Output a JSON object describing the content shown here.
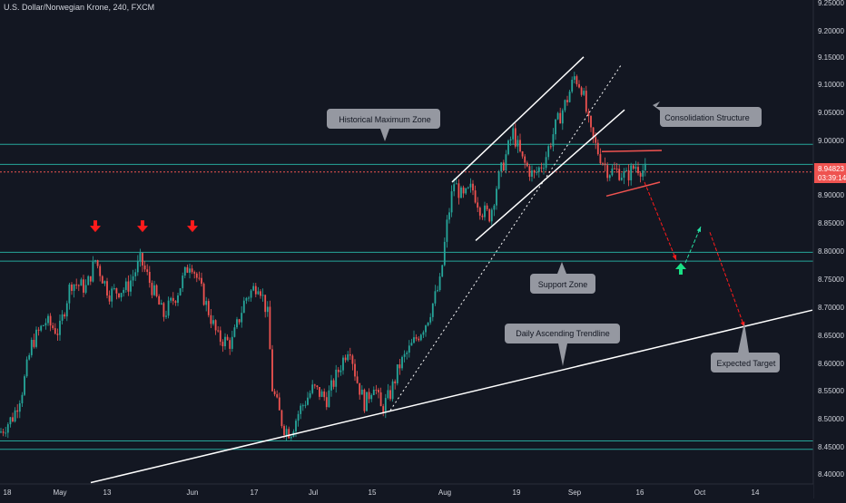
{
  "header": {
    "title": "U.S. Dollar/Norwegian Krone, 240, FXCM"
  },
  "colors": {
    "background": "#131722",
    "bull": "#26a69a",
    "bear": "#ef5350",
    "zone_line": "#26a69a",
    "price_line": "#ef5350",
    "annotation_box": "#9598a1",
    "annotation_text": "#131722",
    "axis_text": "#d1d4dc",
    "price_badge": "#ef5350"
  },
  "price_axis": {
    "ticks": [
      "9.25000",
      "9.20000",
      "9.15000",
      "9.10000",
      "9.05000",
      "9.00000",
      "8.95000",
      "8.90000",
      "8.85000",
      "8.80000",
      "8.75000",
      "8.70000",
      "8.65000",
      "8.60000",
      "8.55000",
      "8.50000",
      "8.45000",
      "8.40000"
    ],
    "current_price": "8.94823",
    "countdown": "03:39:14"
  },
  "time_axis": {
    "labels": [
      "18",
      "May",
      "13",
      "Jun",
      "17",
      "Jul",
      "15",
      "Aug",
      "19",
      "Sep",
      "16",
      "Oct",
      "14"
    ]
  },
  "annotations": {
    "historical_max": "Historical Maximum Zone",
    "consolidation": "Consolidation Structure",
    "support": "Support Zone",
    "trendline": "Daily Ascending Trendline",
    "target": "Expected Target"
  },
  "chart_data": {
    "type": "candlestick",
    "symbol": "U.S. Dollar/Norwegian Krone",
    "interval": "240",
    "source": "FXCM",
    "ylim": [
      8.4,
      9.25
    ],
    "x_labels": [
      "18",
      "May",
      "13",
      "Jun",
      "17",
      "Jul",
      "15",
      "Aug",
      "19",
      "Sep",
      "16",
      "Oct",
      "14"
    ],
    "close_path": [
      [
        0,
        8.48
      ],
      [
        15,
        8.51
      ],
      [
        25,
        8.56
      ],
      [
        35,
        8.64
      ],
      [
        50,
        8.68
      ],
      [
        65,
        8.66
      ],
      [
        78,
        8.75
      ],
      [
        95,
        8.74
      ],
      [
        105,
        8.79
      ],
      [
        120,
        8.73
      ],
      [
        140,
        8.74
      ],
      [
        155,
        8.79
      ],
      [
        170,
        8.73
      ],
      [
        180,
        8.69
      ],
      [
        195,
        8.73
      ],
      [
        210,
        8.79
      ],
      [
        225,
        8.72
      ],
      [
        240,
        8.65
      ],
      [
        255,
        8.64
      ],
      [
        270,
        8.72
      ],
      [
        285,
        8.75
      ],
      [
        295,
        8.69
      ],
      [
        300,
        8.56
      ],
      [
        312,
        8.49
      ],
      [
        320,
        8.48
      ],
      [
        330,
        8.52
      ],
      [
        345,
        8.56
      ],
      [
        360,
        8.54
      ],
      [
        375,
        8.6
      ],
      [
        385,
        8.64
      ],
      [
        392,
        8.58
      ],
      [
        402,
        8.53
      ],
      [
        412,
        8.57
      ],
      [
        420,
        8.52
      ],
      [
        430,
        8.55
      ],
      [
        440,
        8.6
      ],
      [
        455,
        8.64
      ],
      [
        470,
        8.68
      ],
      [
        485,
        8.75
      ],
      [
        492,
        8.85
      ],
      [
        500,
        8.93
      ],
      [
        510,
        8.9
      ],
      [
        520,
        8.92
      ],
      [
        530,
        8.88
      ],
      [
        540,
        8.87
      ],
      [
        548,
        8.93
      ],
      [
        556,
        8.97
      ],
      [
        565,
        9.02
      ],
      [
        575,
        8.97
      ],
      [
        588,
        8.94
      ],
      [
        600,
        8.97
      ],
      [
        612,
        9.03
      ],
      [
        625,
        9.08
      ],
      [
        633,
        9.12
      ],
      [
        641,
        9.1
      ],
      [
        650,
        9.02
      ],
      [
        660,
        8.98
      ],
      [
        670,
        8.95
      ],
      [
        680,
        8.95
      ],
      [
        690,
        8.94
      ],
      [
        700,
        8.96
      ],
      [
        710,
        8.95
      ]
    ],
    "resistance_zone_upper": [
      8.998,
      8.962
    ],
    "support_zone": [
      8.804,
      8.788
    ],
    "bottom_zone": [
      8.465,
      8.45
    ],
    "current_price": 8.94823,
    "projected_path": [
      [
        710,
        8.93
      ],
      [
        745,
        8.79
      ],
      [
        772,
        8.85
      ],
      [
        782,
        8.84
      ],
      [
        820,
        8.67
      ]
    ],
    "trendline": [
      [
        100,
        8.39
      ],
      [
        895,
        8.7
      ]
    ]
  }
}
